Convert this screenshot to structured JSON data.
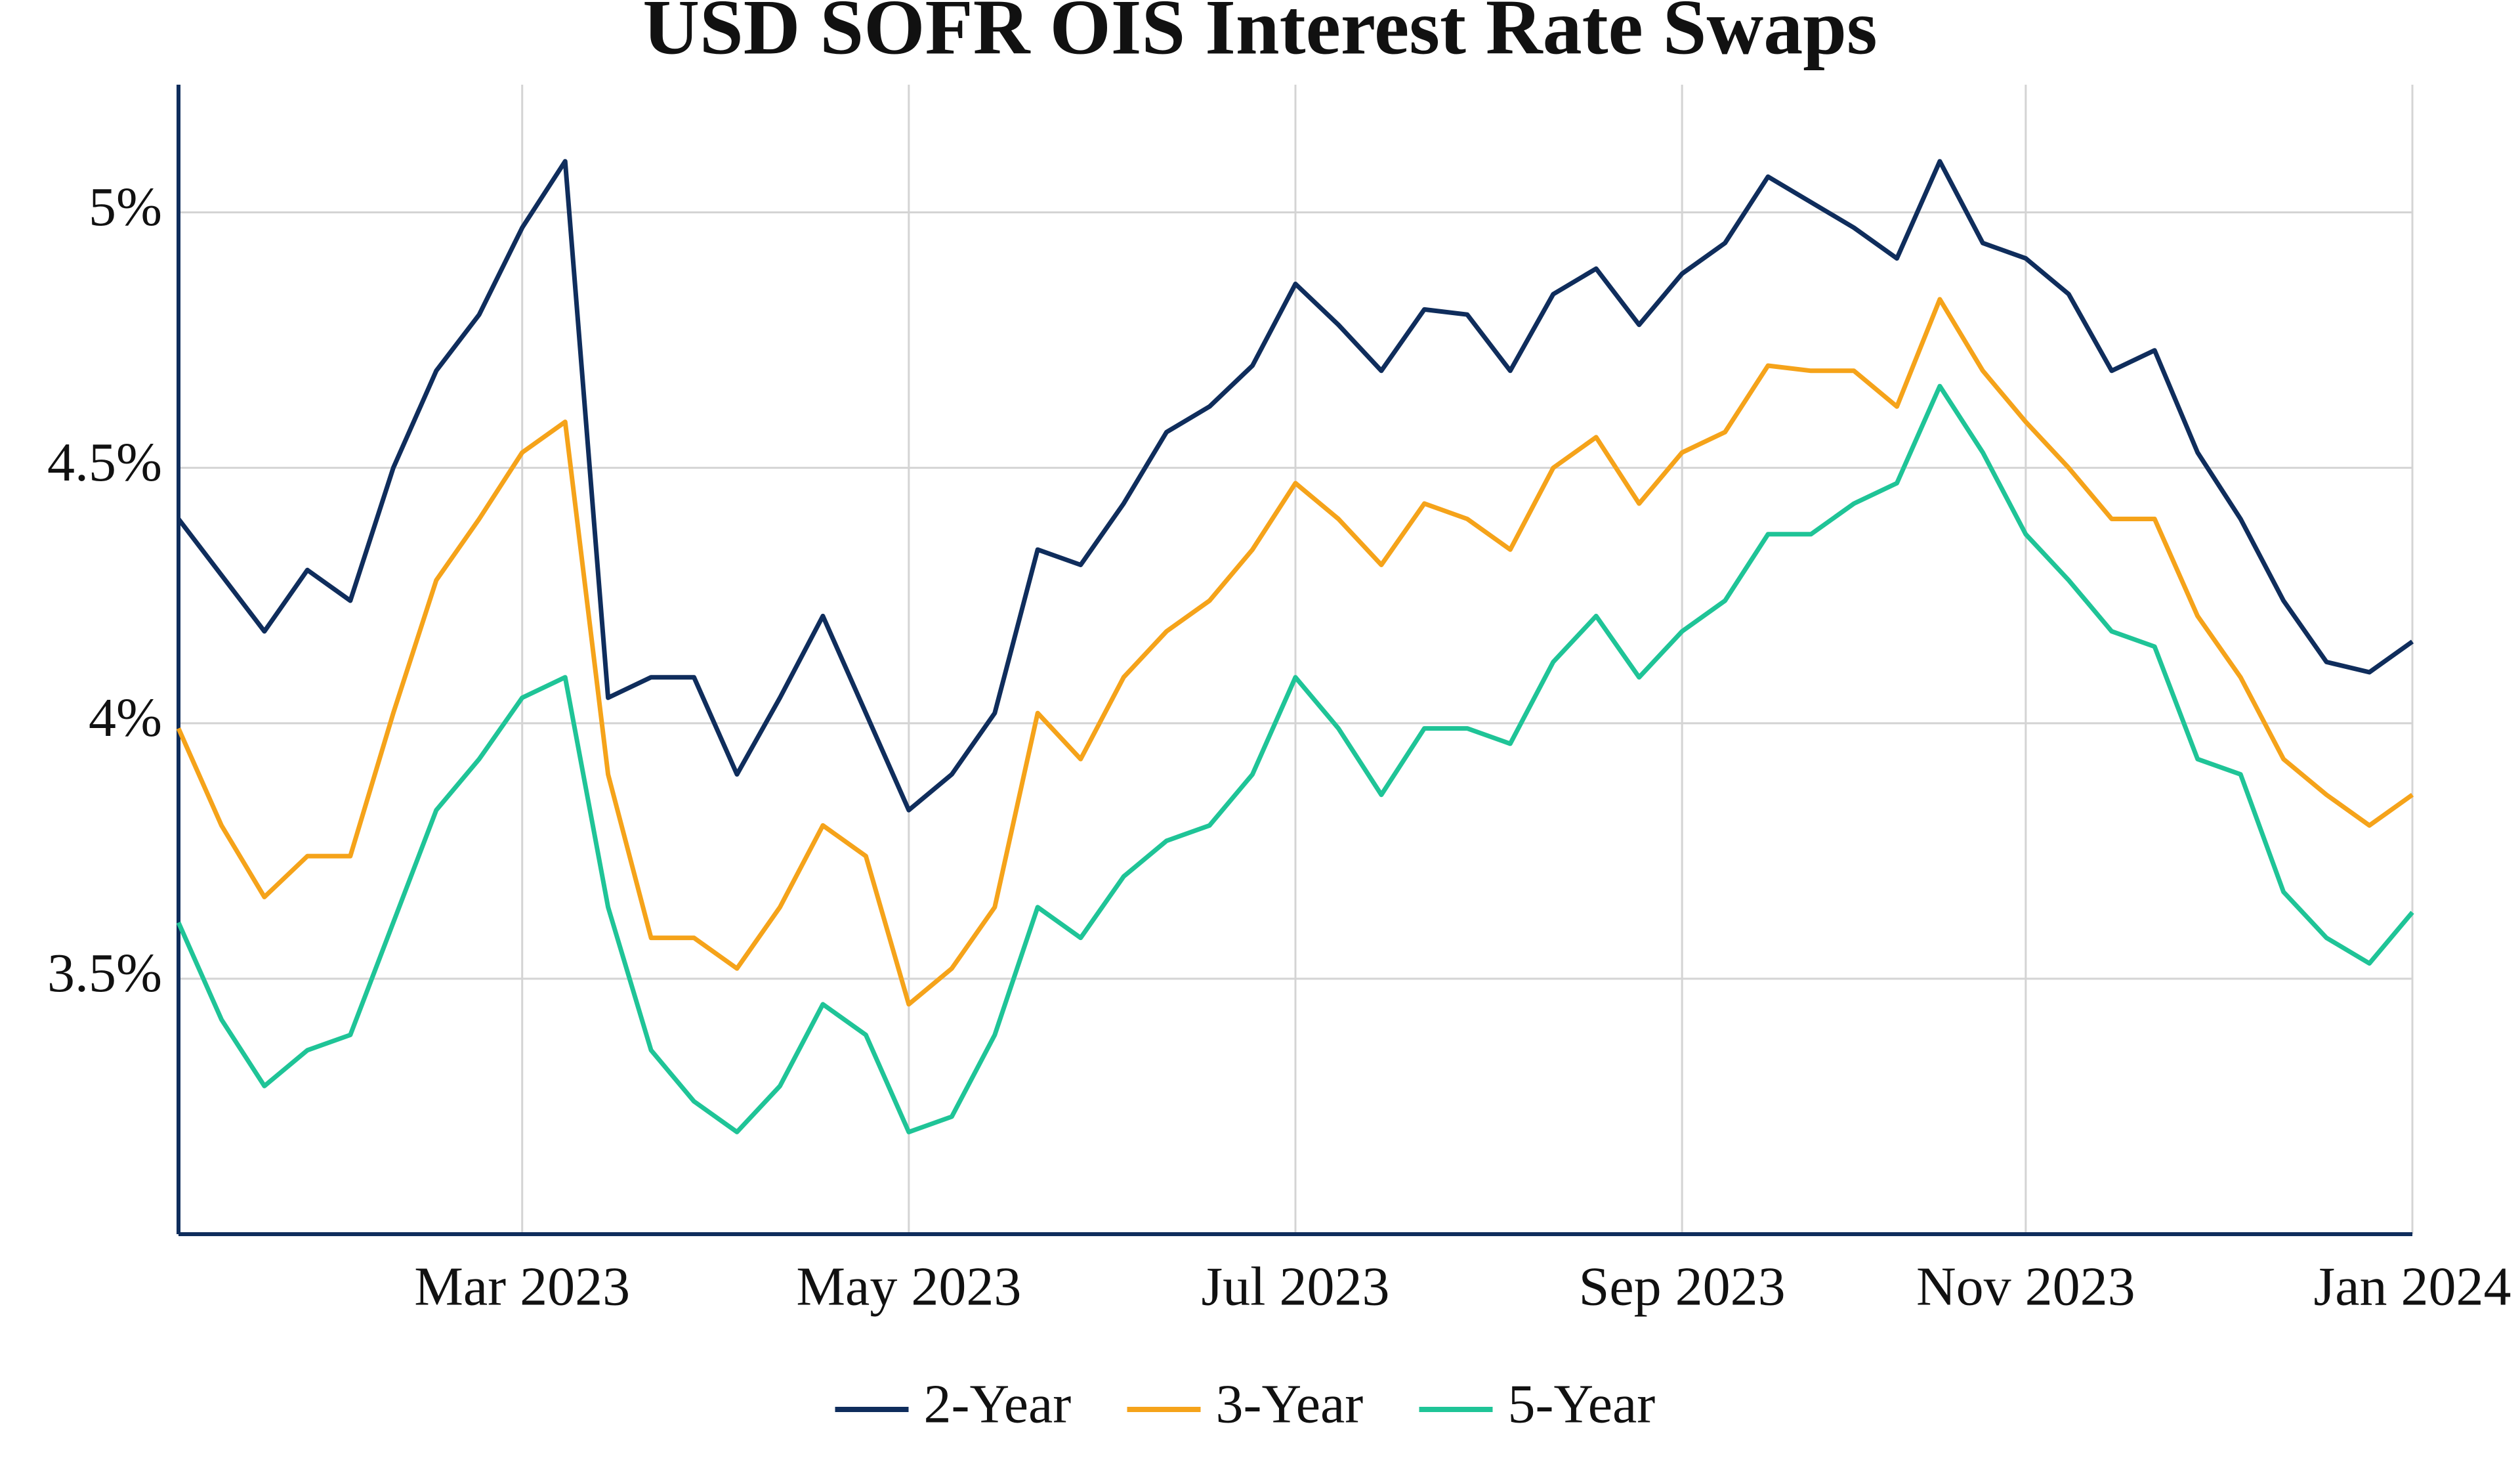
{
  "chart_data": {
    "type": "line",
    "title": "USD SOFR OIS Interest Rate Swaps",
    "categories": [
      null,
      null,
      null,
      null,
      null,
      null,
      null,
      null,
      "Mar 2023",
      null,
      null,
      null,
      null,
      null,
      null,
      null,
      null,
      "May 2023",
      null,
      null,
      null,
      null,
      null,
      null,
      null,
      null,
      "Jul 2023",
      null,
      null,
      null,
      null,
      null,
      null,
      null,
      null,
      "Sep 2023",
      null,
      null,
      null,
      null,
      null,
      null,
      null,
      "Nov 2023",
      null,
      null,
      null,
      null,
      null,
      null,
      null,
      null,
      "Jan 2024"
    ],
    "series": [
      {
        "name": "2-Year",
        "color": "#0f2d5c",
        "values": [
          4.4,
          4.29,
          4.18,
          4.3,
          4.24,
          4.5,
          4.69,
          4.8,
          4.97,
          5.1,
          4.05,
          4.09,
          4.09,
          3.9,
          4.05,
          4.21,
          4.02,
          3.83,
          3.9,
          4.02,
          4.34,
          4.31,
          4.43,
          4.57,
          4.62,
          4.7,
          4.86,
          4.78,
          4.69,
          4.81,
          4.8,
          4.69,
          4.84,
          4.89,
          4.78,
          4.88,
          4.94,
          5.07,
          5.02,
          4.97,
          4.91,
          5.1,
          4.94,
          4.91,
          4.84,
          4.69,
          4.73,
          4.53,
          4.4,
          4.24,
          4.12,
          4.1,
          4.16
        ]
      },
      {
        "name": "3-Year",
        "color": "#f5a31a",
        "values": [
          3.99,
          3.8,
          3.66,
          3.74,
          3.74,
          4.02,
          4.28,
          4.4,
          4.53,
          4.59,
          3.9,
          3.58,
          3.58,
          3.52,
          3.64,
          3.8,
          3.74,
          3.45,
          3.52,
          3.64,
          4.02,
          3.93,
          4.09,
          4.18,
          4.24,
          4.34,
          4.47,
          4.4,
          4.31,
          4.43,
          4.4,
          4.34,
          4.5,
          4.56,
          4.43,
          4.53,
          4.57,
          4.7,
          4.69,
          4.69,
          4.62,
          4.83,
          4.69,
          4.59,
          4.5,
          4.4,
          4.4,
          4.21,
          4.09,
          3.93,
          3.86,
          3.8,
          3.86
        ]
      },
      {
        "name": "5-Year",
        "color": "#1fc497",
        "values": [
          3.61,
          3.42,
          3.29,
          3.36,
          3.39,
          3.61,
          3.83,
          3.93,
          4.05,
          4.09,
          3.64,
          3.36,
          3.26,
          3.2,
          3.29,
          3.45,
          3.39,
          3.2,
          3.23,
          3.39,
          3.64,
          3.58,
          3.7,
          3.77,
          3.8,
          3.9,
          4.09,
          3.99,
          3.86,
          3.99,
          3.99,
          3.96,
          4.12,
          4.21,
          4.09,
          4.18,
          4.24,
          4.37,
          4.37,
          4.43,
          4.47,
          4.66,
          4.53,
          4.37,
          4.28,
          4.18,
          4.15,
          3.93,
          3.9,
          3.67,
          3.58,
          3.53,
          3.63
        ]
      }
    ],
    "ylim": [
      3.0,
      5.25
    ],
    "yticks": [
      {
        "value": 3.5,
        "label": "3.5%"
      },
      {
        "value": 4,
        "label": "4%"
      },
      {
        "value": 4.5,
        "label": "4.5%"
      },
      {
        "value": 5,
        "label": "5%"
      }
    ],
    "grid": true,
    "legend": "bottom"
  }
}
